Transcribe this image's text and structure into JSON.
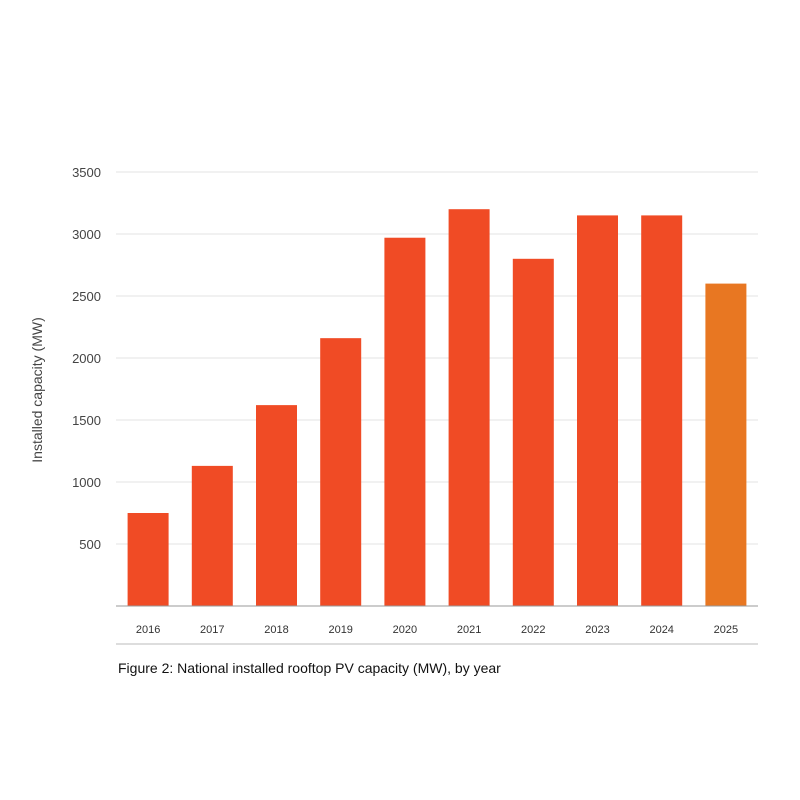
{
  "chart_data": {
    "type": "bar",
    "title": "",
    "xlabel": "",
    "ylabel": "Installed capacity (MW)",
    "caption": "Figure 2: National installed rooftop PV capacity (MW), by year",
    "categories": [
      "2016",
      "2017",
      "2018",
      "2019",
      "2020",
      "2021",
      "2022",
      "2023",
      "2024",
      "2025"
    ],
    "values": [
      750,
      1130,
      1620,
      2160,
      2970,
      3200,
      2800,
      3150,
      3150,
      2600
    ],
    "ylim": [
      0,
      3500
    ],
    "yticks": [
      500,
      1000,
      1500,
      2000,
      2500,
      3000,
      3500
    ],
    "grid": true,
    "colors": {
      "default": "#F04B25",
      "highlight": "#E87722"
    },
    "highlighted_category": "2025"
  }
}
